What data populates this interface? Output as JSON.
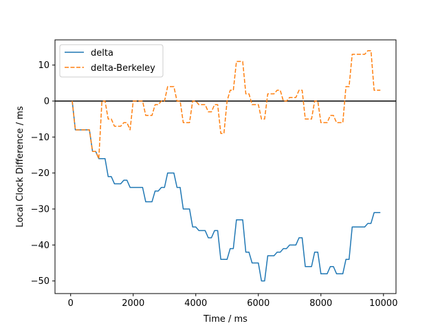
{
  "chart_data": {
    "type": "line",
    "title": "",
    "xlabel": "Time / ms",
    "ylabel": "Local Clock Difference / ms",
    "xlim": [
      -500,
      10400
    ],
    "ylim": [
      -53.5,
      17
    ],
    "xticks": [
      0,
      2000,
      4000,
      6000,
      8000,
      10000
    ],
    "xtick_labels": [
      "0",
      "2000",
      "4000",
      "6000",
      "8000",
      "10000"
    ],
    "yticks": [
      -50,
      -40,
      -30,
      -20,
      -10,
      0,
      10
    ],
    "ytick_labels": [
      "−50",
      "−40",
      "−30",
      "−20",
      "−10",
      "0",
      "10"
    ],
    "grid": false,
    "legend_position": "top-left",
    "hline": {
      "y": 0,
      "color": "#000000"
    },
    "series": [
      {
        "name": "delta",
        "color": "#1f77b4",
        "style": "solid",
        "x": [
          50,
          150,
          200,
          300,
          400,
          500,
          600,
          700,
          800,
          900,
          1000,
          1100,
          1200,
          1300,
          1400,
          1500,
          1600,
          1700,
          1800,
          1900,
          2000,
          2100,
          2200,
          2300,
          2400,
          2500,
          2600,
          2700,
          2800,
          2900,
          3000,
          3100,
          3200,
          3300,
          3400,
          3500,
          3600,
          3700,
          3800,
          3900,
          4000,
          4100,
          4200,
          4300,
          4400,
          4500,
          4600,
          4700,
          4800,
          4900,
          5000,
          5100,
          5200,
          5300,
          5400,
          5500,
          5600,
          5700,
          5800,
          5900,
          6000,
          6100,
          6200,
          6300,
          6400,
          6500,
          6600,
          6700,
          6800,
          6900,
          7000,
          7100,
          7200,
          7300,
          7400,
          7500,
          7600,
          7700,
          7800,
          7900,
          8000,
          8100,
          8200,
          8300,
          8400,
          8500,
          8600,
          8700,
          8800,
          8900,
          9000,
          9100,
          9200,
          9300,
          9400,
          9500,
          9600,
          9700,
          9800,
          9900
        ],
        "y": [
          0,
          -8,
          -8,
          -8,
          -8,
          -8,
          -8,
          -14,
          -14,
          -16,
          -16,
          -16,
          -21,
          -21,
          -23,
          -23,
          -23,
          -22,
          -22,
          -24,
          -24,
          -24,
          -24,
          -24,
          -28,
          -28,
          -28,
          -25,
          -25,
          -24,
          -24,
          -20,
          -20,
          -20,
          -24,
          -24,
          -30,
          -30,
          -30,
          -35,
          -35,
          -36,
          -36,
          -36,
          -38,
          -38,
          -36,
          -36,
          -44,
          -44,
          -44,
          -41,
          -41,
          -33,
          -33,
          -33,
          -42,
          -42,
          -45,
          -45,
          -45,
          -50,
          -50,
          -43,
          -43,
          -43,
          -42,
          -42,
          -41,
          -41,
          -40,
          -40,
          -40,
          -38,
          -38,
          -46,
          -46,
          -46,
          -42,
          -42,
          -48,
          -48,
          -48,
          -46,
          -46,
          -48,
          -48,
          -48,
          -44,
          -44,
          -35,
          -35,
          -35,
          -35,
          -35,
          -34,
          -34,
          -31,
          -31,
          -31
        ]
      },
      {
        "name": "delta-Berkeley",
        "color": "#ff7f0e",
        "style": "dashed",
        "x": [
          50,
          150,
          200,
          300,
          400,
          500,
          600,
          700,
          800,
          900,
          1000,
          1100,
          1200,
          1300,
          1400,
          1500,
          1600,
          1700,
          1800,
          1900,
          2000,
          2100,
          2200,
          2300,
          2400,
          2500,
          2600,
          2700,
          2800,
          2900,
          3000,
          3100,
          3200,
          3300,
          3400,
          3500,
          3600,
          3700,
          3800,
          3900,
          4000,
          4100,
          4200,
          4300,
          4400,
          4500,
          4600,
          4700,
          4800,
          4900,
          5000,
          5100,
          5200,
          5300,
          5400,
          5500,
          5600,
          5700,
          5800,
          5900,
          6000,
          6100,
          6200,
          6300,
          6400,
          6500,
          6600,
          6700,
          6800,
          6900,
          7000,
          7100,
          7200,
          7300,
          7400,
          7500,
          7600,
          7700,
          7800,
          7900,
          8000,
          8100,
          8200,
          8300,
          8400,
          8500,
          8600,
          8700,
          8800,
          8900,
          9000,
          9100,
          9200,
          9300,
          9400,
          9500,
          9600,
          9700,
          9800,
          9900
        ],
        "y": [
          0,
          -8,
          -8,
          -8,
          -8,
          -8,
          -8,
          -14,
          -14,
          -16,
          0,
          0,
          -5,
          -5,
          -7,
          -7,
          -7,
          -6,
          -6,
          -8,
          0,
          0,
          0,
          0,
          -4,
          -4,
          -4,
          -1,
          -1,
          0,
          0,
          4,
          4,
          4,
          0,
          0,
          -6,
          -6,
          -6,
          0,
          0,
          -1,
          -1,
          -1,
          -3,
          -3,
          -1,
          -1,
          -9,
          -9,
          0,
          3,
          3,
          11,
          11,
          11,
          2,
          2,
          -1,
          -1,
          -1,
          -5,
          -5,
          2,
          2,
          2,
          3,
          3,
          0,
          0,
          1,
          1,
          1,
          3,
          3,
          -5,
          -5,
          -5,
          0,
          0,
          -6,
          -6,
          -6,
          -4,
          -4,
          -6,
          -6,
          -6,
          4,
          4,
          13,
          13,
          13,
          13,
          13,
          14,
          14,
          3,
          3,
          3
        ]
      }
    ]
  }
}
